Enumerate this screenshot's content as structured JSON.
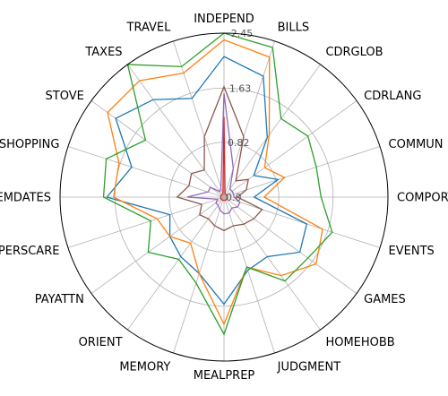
{
  "chart_data": {
    "type": "radar",
    "categories": [
      "INDEPEND",
      "BILLS",
      "CDRGLOB",
      "CDRLANG",
      "COMMUN",
      "COMPORT",
      "EVENTS",
      "GAMES",
      "HOMEHOBB",
      "JUDGMENT",
      "MEALPREP",
      "MEMORY",
      "ORIENT",
      "PAYATTN",
      "PERSCARE",
      "REMDATES",
      "SHOPPING",
      "STOVE",
      "TAXES",
      "TRAVEL"
    ],
    "rticks": [
      0.0,
      0.82,
      1.63,
      2.45
    ],
    "rtick_labels": [
      "0.0",
      "0.82",
      "1.63",
      "2.45"
    ],
    "rlim": [
      0,
      2.45
    ],
    "grid": true,
    "series": [
      {
        "color": "#1f77b4",
        "values": [
          2.1,
          1.9,
          1.1,
          0.55,
          0.85,
          0.45,
          1.3,
          1.4,
          1.1,
          1.15,
          1.6,
          1.2,
          1.1,
          1.0,
          0.85,
          1.75,
          1.45,
          2.0,
          1.8,
          1.55
        ]
      },
      {
        "color": "#ff7f0e",
        "values": [
          2.35,
          2.2,
          1.15,
          0.75,
          0.95,
          0.6,
          1.55,
          1.7,
          1.45,
          1.1,
          1.9,
          1.2,
          0.85,
          1.0,
          1.05,
          1.65,
          1.65,
          2.15,
          2.15,
          1.95
        ]
      },
      {
        "color": "#2ca02c",
        "values": [
          2.45,
          2.35,
          1.45,
          1.55,
          1.45,
          1.45,
          1.7,
          1.55,
          1.55,
          1.1,
          2.05,
          1.35,
          1.15,
          1.4,
          1.15,
          1.8,
          1.85,
          1.45,
          2.45,
          2.05
        ]
      },
      {
        "color": "#d62728",
        "values": [
          1.2,
          0.05,
          0.05,
          0.05,
          0.05,
          0.05,
          0.05,
          0.05,
          0.05,
          0.05,
          0.05,
          0.05,
          0.05,
          0.05,
          0.05,
          0.05,
          0.05,
          0.05,
          0.05,
          0.05
        ]
      },
      {
        "color": "#9467bd",
        "values": [
          1.55,
          0.45,
          0.15,
          0.15,
          0.15,
          0.15,
          0.25,
          0.25,
          0.2,
          0.25,
          0.25,
          0.2,
          0.15,
          0.15,
          0.1,
          0.55,
          0.25,
          0.25,
          0.1,
          0.15
        ]
      },
      {
        "color": "#8c564b",
        "values": [
          1.65,
          0.95,
          0.3,
          0.45,
          0.35,
          0.2,
          0.6,
          0.55,
          0.5,
          0.45,
          0.5,
          0.45,
          0.4,
          0.45,
          0.35,
          0.7,
          0.55,
          0.6,
          0.5,
          0.95
        ]
      }
    ]
  }
}
